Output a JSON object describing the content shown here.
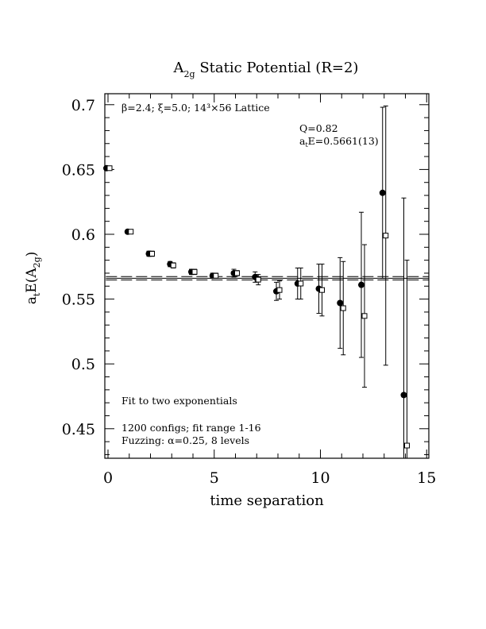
{
  "chart_data": {
    "type": "scatter",
    "title_main": "A",
    "title_sub": "2g",
    "title_rest": " Static Potential (R=2)",
    "xlabel": "time separation",
    "ylabel_pre": "a",
    "ylabel_t": "t",
    "ylabel_mid": "E(A",
    "ylabel_sub": "2g",
    "ylabel_post": ")",
    "xlim": [
      0,
      15
    ],
    "ylim": [
      0.425,
      0.705
    ],
    "xticks": [
      0,
      5,
      10,
      15
    ],
    "xtick_labels": [
      "0",
      "5",
      "10",
      "15"
    ],
    "yticks": [
      0.45,
      0.5,
      0.55,
      0.6,
      0.65,
      0.7
    ],
    "ytick_labels": [
      "0.45",
      "0.5",
      "0.55",
      "0.6",
      "0.65",
      "0.7"
    ],
    "annotations": {
      "lattice": "β=2.4; ξ=5.0; 14³×56 Lattice",
      "q": "Q=0.82",
      "ate_pre": "a",
      "ate_sub": "t",
      "ate_post": "E=0.5661(13)",
      "fit": "Fit to two exponentials",
      "configs": "1200 configs; fit range 1-16",
      "fuzzing": "Fuzzing: α=0.25, 8 levels"
    },
    "fit": {
      "value": 0.5661,
      "error": 0.0013
    },
    "series": [
      {
        "marker": "filled-circle",
        "points": [
          {
            "x": 0,
            "y": 0.651,
            "err": 0.001
          },
          {
            "x": 1,
            "y": 0.602,
            "err": 0.001
          },
          {
            "x": 2,
            "y": 0.585,
            "err": 0.002
          },
          {
            "x": 3,
            "y": 0.577,
            "err": 0.002
          },
          {
            "x": 4,
            "y": 0.571,
            "err": 0.002
          },
          {
            "x": 5,
            "y": 0.568,
            "err": 0.002
          },
          {
            "x": 6,
            "y": 0.57,
            "err": 0.003
          },
          {
            "x": 7,
            "y": 0.567,
            "err": 0.004
          },
          {
            "x": 8,
            "y": 0.556,
            "err": 0.007
          },
          {
            "x": 9,
            "y": 0.562,
            "err": 0.012
          },
          {
            "x": 10,
            "y": 0.558,
            "err": 0.019
          },
          {
            "x": 11,
            "y": 0.547,
            "err": 0.035
          },
          {
            "x": 12,
            "y": 0.561,
            "err": 0.056
          },
          {
            "x": 13,
            "y": 0.632,
            "err": 0.066
          },
          {
            "x": 14,
            "y": 0.476,
            "err": 0.152
          }
        ]
      },
      {
        "marker": "open-square",
        "points": [
          {
            "x": 0,
            "y": 0.651,
            "err": 0.001
          },
          {
            "x": 1,
            "y": 0.602,
            "err": 0.001
          },
          {
            "x": 2,
            "y": 0.585,
            "err": 0.002
          },
          {
            "x": 3,
            "y": 0.576,
            "err": 0.002
          },
          {
            "x": 4,
            "y": 0.571,
            "err": 0.002
          },
          {
            "x": 5,
            "y": 0.568,
            "err": 0.002
          },
          {
            "x": 6,
            "y": 0.57,
            "err": 0.002
          },
          {
            "x": 7,
            "y": 0.565,
            "err": 0.004
          },
          {
            "x": 8,
            "y": 0.557,
            "err": 0.007
          },
          {
            "x": 9,
            "y": 0.562,
            "err": 0.012
          },
          {
            "x": 10,
            "y": 0.557,
            "err": 0.02
          },
          {
            "x": 11,
            "y": 0.543,
            "err": 0.036
          },
          {
            "x": 12,
            "y": 0.537,
            "err": 0.055
          },
          {
            "x": 13,
            "y": 0.599,
            "err": 0.1
          },
          {
            "x": 14,
            "y": 0.437,
            "err": 0.143
          }
        ]
      }
    ]
  }
}
